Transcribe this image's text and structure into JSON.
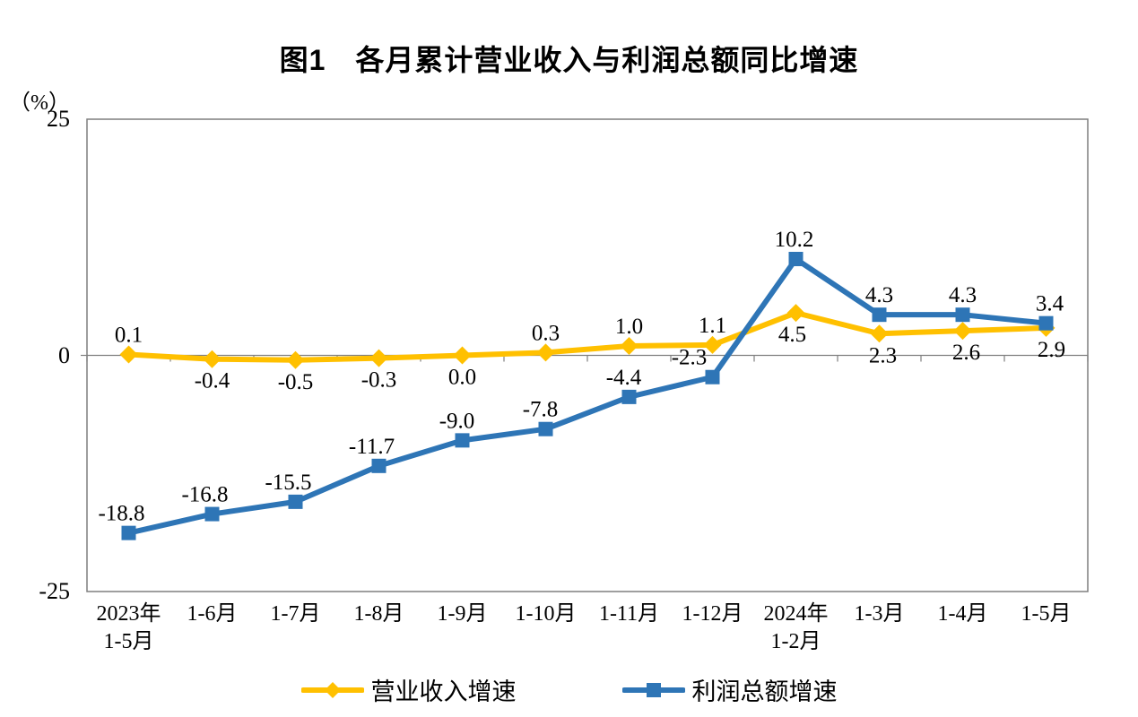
{
  "chart_data": {
    "type": "line",
    "title": "图1　各月累计营业收入与利润总额同比增速",
    "unit_label": "（%）",
    "categories": [
      "2023年\n1-5月",
      "1-6月",
      "1-7月",
      "1-8月",
      "1-9月",
      "1-10月",
      "1-11月",
      "1-12月",
      "2024年\n1-2月",
      "1-3月",
      "1-4月",
      "1-5月"
    ],
    "ylim": [
      -25,
      25
    ],
    "yticks": [
      25,
      0,
      -25
    ],
    "grid": false,
    "legend_position": "bottom",
    "axis_color": "#7f7f7f",
    "label_color": "#000000",
    "series": [
      {
        "name": "营业收入增速",
        "color": "#FFC000",
        "marker": "diamond",
        "values": [
          0.1,
          -0.4,
          -0.5,
          -0.3,
          0.0,
          0.3,
          1.0,
          1.1,
          4.5,
          2.3,
          2.6,
          2.9
        ],
        "label_positions": [
          "above",
          "below",
          "below",
          "below",
          "below",
          "above",
          "above",
          "above",
          "below",
          "below",
          "below",
          "below"
        ]
      },
      {
        "name": "利润总额增速",
        "color": "#2E75B6",
        "marker": "square",
        "values": [
          -18.8,
          -16.8,
          -15.5,
          -11.7,
          -9.0,
          -7.8,
          -4.4,
          -2.3,
          10.2,
          4.3,
          4.3,
          3.4
        ],
        "label_positions": [
          "above",
          "above",
          "above",
          "above",
          "above",
          "above",
          "above",
          "above",
          "above",
          "above",
          "above",
          "above"
        ]
      }
    ]
  }
}
